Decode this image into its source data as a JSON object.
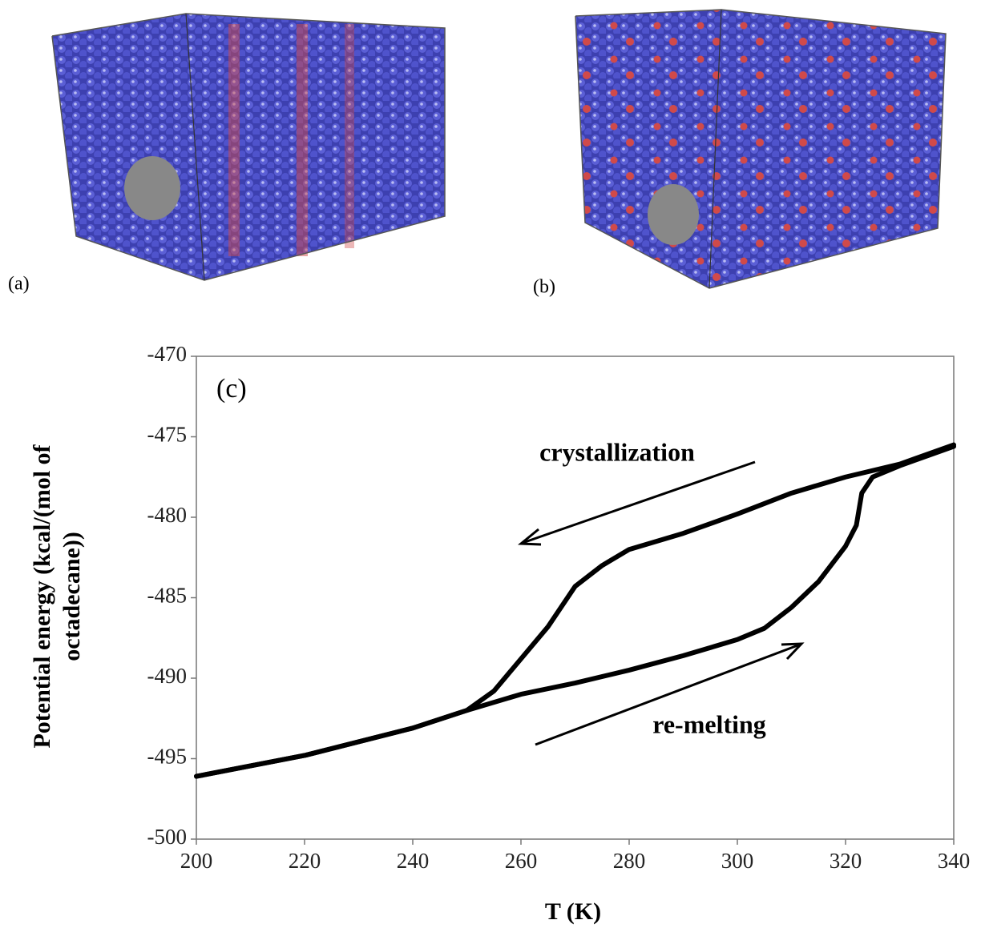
{
  "panels": [
    {
      "label": "(a)"
    },
    {
      "label": "(b)"
    }
  ],
  "chart_data": {
    "type": "line",
    "panel_label": "(c)",
    "x_label": "T (K)",
    "y_label": [
      "Potential energy (kcal/(mol of",
      "octadecane))"
    ],
    "annotations": [
      "crystallization",
      "re-melting"
    ],
    "xlim": [
      200,
      340
    ],
    "xticks": [
      200,
      220,
      240,
      260,
      280,
      300,
      320,
      340
    ],
    "ylim": [
      -500,
      -470
    ],
    "yticks": [
      -500,
      -495,
      -490,
      -485,
      -480,
      -475,
      -470
    ],
    "series": [
      {
        "color": "#000000",
        "x": [
          200,
          220,
          240,
          250,
          260,
          270,
          280,
          290,
          300,
          305,
          310,
          315,
          320,
          322,
          323,
          325,
          330,
          340
        ],
        "values": [
          -496.1,
          -494.8,
          -493.1,
          -492.0,
          -491.0,
          -490.3,
          -489.5,
          -488.6,
          -487.6,
          -486.9,
          -485.6,
          -484.0,
          -481.8,
          -480.5,
          -478.5,
          -477.5,
          -476.8,
          -475.6
        ]
      },
      {
        "color": "#000000",
        "x": [
          340,
          330,
          320,
          310,
          300,
          290,
          280,
          275,
          270,
          265,
          260,
          255,
          250,
          240,
          220,
          200
        ],
        "values": [
          -475.5,
          -476.7,
          -477.5,
          -478.5,
          -479.8,
          -481.0,
          -482.0,
          -483.0,
          -484.3,
          -486.8,
          -488.8,
          -490.8,
          -492.0,
          -493.1,
          -494.8,
          -496.1
        ]
      }
    ]
  }
}
